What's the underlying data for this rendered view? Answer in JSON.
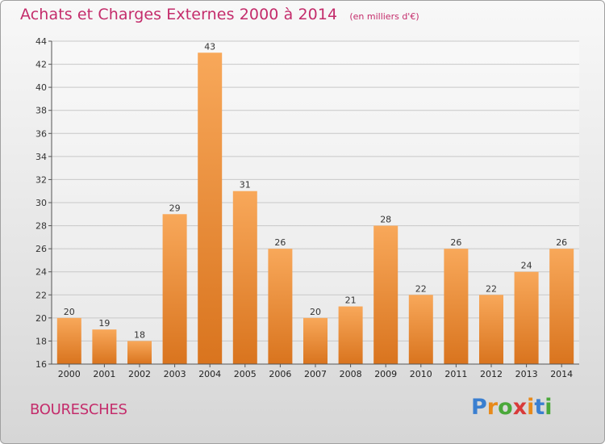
{
  "title": "Achats et Charges Externes 2000 à 2014",
  "subtitle": "(en milliers d'€)",
  "commune": "BOURESCHES",
  "logo": {
    "text": "Proxiti",
    "letters": [
      "P",
      "r",
      "o",
      "x",
      "i",
      "t",
      "i"
    ],
    "colors": [
      "#3a7fd0",
      "#e88a1a",
      "#4aa83a",
      "#d83a3a",
      "#e88a1a",
      "#3a7fd0",
      "#4aa83a"
    ]
  },
  "colors": {
    "accent": "#c42c6b",
    "bar_light": "#f8a85a",
    "bar_dark": "#d9741e",
    "grid": "#c8c8c8"
  },
  "chart_data": {
    "type": "bar",
    "categories": [
      "2000",
      "2001",
      "2002",
      "2003",
      "2004",
      "2005",
      "2006",
      "2007",
      "2008",
      "2009",
      "2010",
      "2011",
      "2012",
      "2013",
      "2014"
    ],
    "values": [
      20,
      19,
      18,
      29,
      43,
      31,
      26,
      20,
      21,
      28,
      22,
      26,
      22,
      24,
      26
    ],
    "title": "Achats et Charges Externes 2000 à 2014",
    "xlabel": "",
    "ylabel": "",
    "ylim": [
      16,
      44
    ],
    "yticks": [
      16,
      18,
      20,
      22,
      24,
      26,
      28,
      30,
      32,
      34,
      36,
      38,
      40,
      42,
      44
    ],
    "grid": true,
    "data_labels": true
  }
}
